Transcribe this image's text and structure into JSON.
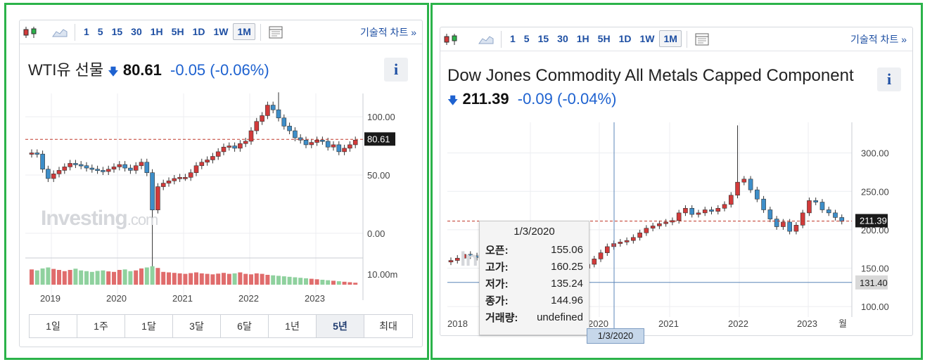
{
  "left": {
    "toolbar": {
      "intervals": [
        "1",
        "5",
        "15",
        "30",
        "1H",
        "5H",
        "1D",
        "1W",
        "1M"
      ],
      "active_interval": "1M",
      "technical_link": "기술적 차트 »"
    },
    "title": "WTI유 선물",
    "price": "80.61",
    "change": "-0.05",
    "change_pct": "(-0.06%)",
    "info_label": "i",
    "price_tag": "80.61",
    "y_labels": [
      "100.00",
      "50.00",
      "0.00"
    ],
    "volume_label": "10.00m",
    "x_labels": [
      "2019",
      "2020",
      "2021",
      "2022",
      "2023"
    ],
    "watermark": "Investing",
    "watermark_suffix": ".com",
    "ranges": [
      "1일",
      "1주",
      "1달",
      "3달",
      "6달",
      "1년",
      "5년",
      "최대"
    ],
    "active_range": "5년"
  },
  "right": {
    "toolbar": {
      "intervals": [
        "1",
        "5",
        "15",
        "30",
        "1H",
        "5H",
        "1D",
        "1W",
        "1M"
      ],
      "active_interval": "1M",
      "technical_link": "기술적 차트 »"
    },
    "title": "Dow Jones Commodity All Metals Capped Component",
    "price": "211.39",
    "change": "-0.09",
    "change_pct": "(-0.04%)",
    "info_label": "i",
    "price_tag": "211.39",
    "cursor_tag": "131.40",
    "y_labels": [
      "300.00",
      "250.00",
      "200.00",
      "150.00",
      "100.00"
    ],
    "x_labels": [
      "2018",
      "2020",
      "2021",
      "2022",
      "2023",
      "월"
    ],
    "cursor_date": "1/3/2020",
    "watermark": "Inv",
    "tooltip": {
      "date": "1/3/2020",
      "rows": [
        {
          "label": "오픈:",
          "value": "155.06"
        },
        {
          "label": "고가:",
          "value": "160.25"
        },
        {
          "label": "저가:",
          "value": "135.24"
        },
        {
          "label": "종가:",
          "value": "144.96"
        },
        {
          "label": "거래량:",
          "value": "undefined"
        }
      ]
    }
  },
  "colors": {
    "up": "#3d8ec9",
    "down": "#d23a3a",
    "vol_up": "#8fd19e",
    "vol_down": "#e06c6c",
    "accent": "#1e4fa3"
  },
  "chart_data": [
    {
      "type": "candlestick",
      "title": "WTI유 선물",
      "x_range": [
        "2018-08",
        "2023-08"
      ],
      "ylim": [
        -20,
        120
      ],
      "closes": [
        69,
        68,
        55,
        47,
        51,
        54,
        57,
        60,
        59,
        58,
        56,
        55,
        54,
        53,
        55,
        57,
        59,
        56,
        54,
        58,
        61,
        52,
        20,
        40,
        43,
        45,
        47,
        48,
        48,
        52,
        58,
        61,
        63,
        66,
        70,
        74,
        75,
        73,
        77,
        79,
        88,
        96,
        101,
        110,
        106,
        99,
        92,
        88,
        82,
        80,
        76,
        78,
        80,
        79,
        74,
        76,
        70,
        73,
        76,
        80
      ],
      "volume": [
        62,
        58,
        66,
        70,
        64,
        60,
        55,
        60,
        65,
        58,
        55,
        52,
        56,
        58,
        54,
        52,
        60,
        62,
        55,
        58,
        66,
        70,
        75,
        68,
        52,
        50,
        48,
        46,
        44,
        47,
        50,
        46,
        44,
        42,
        45,
        48,
        44,
        46,
        50,
        44,
        42,
        46,
        44,
        40,
        38,
        36,
        34,
        32,
        30,
        28,
        26,
        24,
        22,
        20,
        18,
        16,
        14,
        12,
        10,
        8
      ],
      "last": 80.61,
      "ylabels": [
        "100.00",
        "50.00",
        "0.00"
      ],
      "volume_label": "10.00m"
    },
    {
      "type": "candlestick",
      "title": "Dow Jones Commodity All Metals Capped Component",
      "x_range": [
        "2017-10",
        "2023-08"
      ],
      "ylim": [
        90,
        340
      ],
      "closes": [
        160,
        163,
        168,
        166,
        164,
        163,
        162,
        164,
        163,
        161,
        160,
        158,
        156,
        157,
        159,
        158,
        157,
        155,
        150,
        145,
        150,
        155,
        162,
        170,
        178,
        182,
        184,
        186,
        190,
        196,
        202,
        205,
        208,
        210,
        212,
        222,
        228,
        220,
        222,
        226,
        224,
        228,
        233,
        245,
        262,
        266,
        252,
        240,
        226,
        214,
        204,
        210,
        198,
        206,
        222,
        238,
        236,
        226,
        222,
        216,
        211
      ],
      "tooltip": {
        "date": "1/3/2020",
        "open": 155.06,
        "high": 160.25,
        "low": 135.24,
        "close": 144.96
      },
      "last": 211.39,
      "cursor_value": 131.4
    }
  ]
}
